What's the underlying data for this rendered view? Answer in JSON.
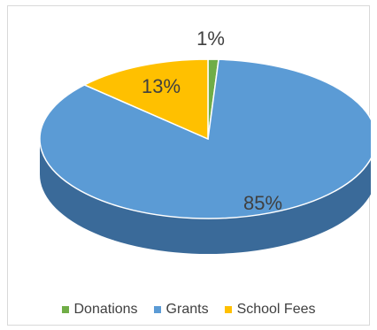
{
  "chart_data": {
    "type": "pie",
    "style": "3d",
    "title": "",
    "categories": [
      "Donations",
      "Grants",
      "School Fees"
    ],
    "values": [
      1,
      85,
      13
    ],
    "data_labels": [
      "1%",
      "85%",
      "13%"
    ],
    "colors": {
      "Donations": "#70ad47",
      "Grants": "#5b9bd5",
      "School Fees": "#ffc000"
    },
    "side_colors": {
      "Donations": "#4e7a31",
      "Grants": "#3a6a99",
      "School Fees": "#c79400"
    },
    "label_colors": {
      "Donations": "#404040",
      "Grants": "#404040",
      "School Fees": "#404040"
    },
    "legend_position": "bottom",
    "grid": false
  }
}
